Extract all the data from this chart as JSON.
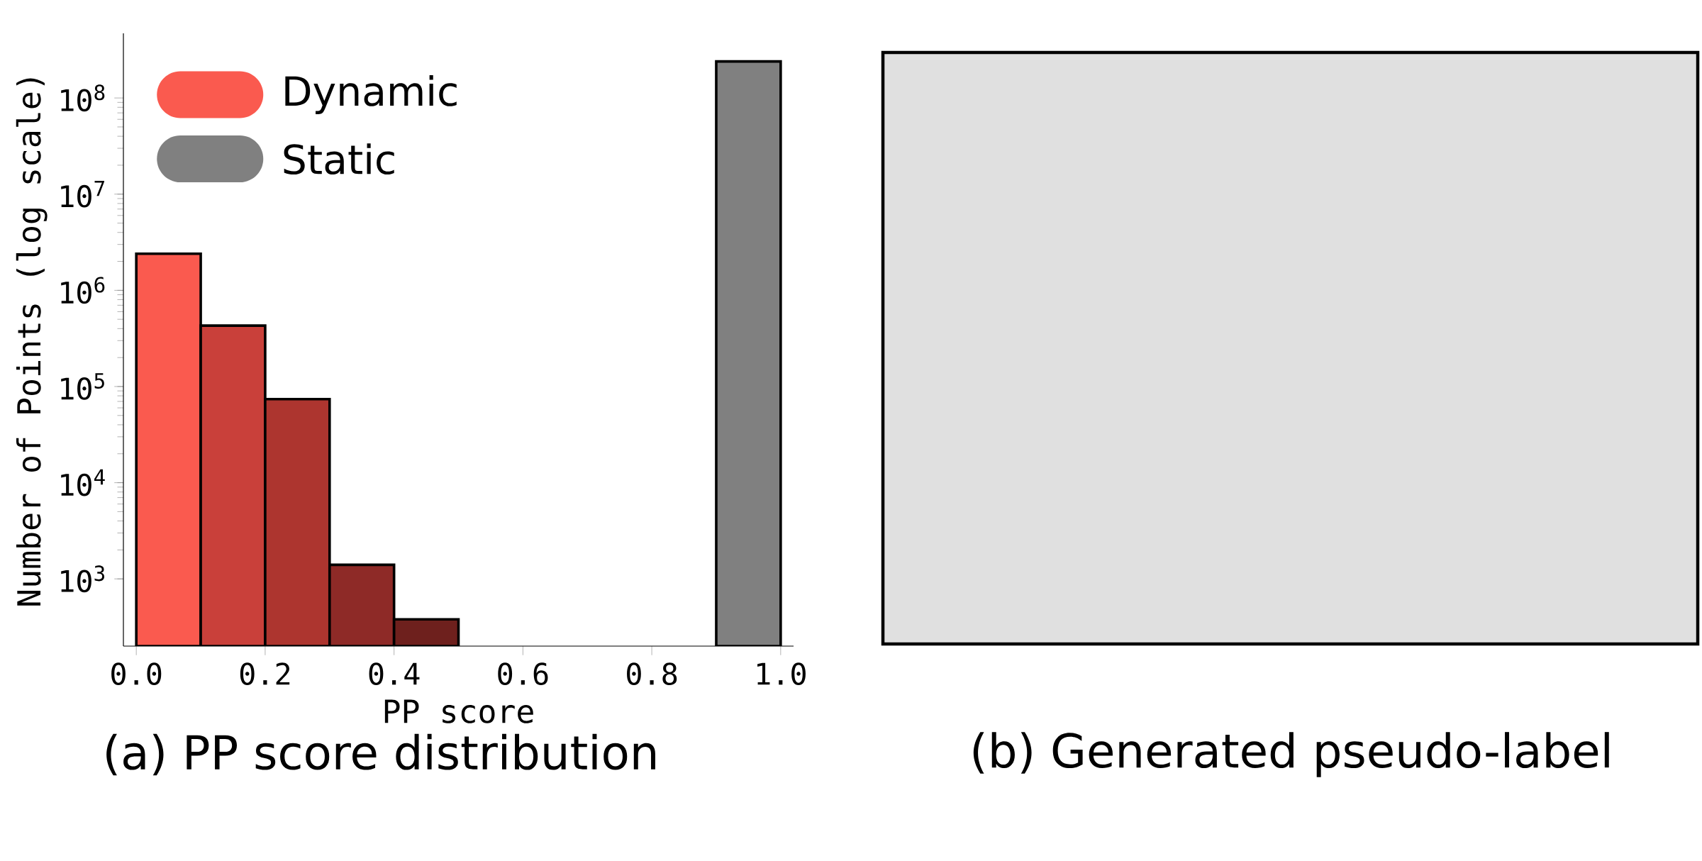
{
  "chart_data": {
    "type": "histogram",
    "title": "(a) PP score distribution",
    "xlabel": "PP score",
    "ylabel": "Number of Points (log scale)",
    "bins": [
      0.0,
      0.1,
      0.2,
      0.3,
      0.4,
      0.5,
      0.6,
      0.7,
      0.8,
      0.9,
      1.0
    ],
    "series": [
      {
        "name": "Dynamic",
        "color": "#fa5a4f",
        "colors": [
          "#fa5a4f",
          "#c9403a",
          "#ad352f",
          "#8e2a27",
          "#6e201d",
          null,
          null,
          null,
          null,
          null
        ],
        "values": [
          2400000,
          430000,
          74000,
          1400,
          380,
          null,
          null,
          null,
          null,
          null
        ]
      },
      {
        "name": "Static",
        "color": "#808080",
        "colors": [
          null,
          null,
          null,
          null,
          null,
          null,
          null,
          null,
          null,
          "#808080"
        ],
        "values": [
          null,
          null,
          null,
          null,
          null,
          null,
          null,
          null,
          null,
          240000000
        ]
      }
    ],
    "log": "y",
    "legend": "top left",
    "grid": false,
    "xlim": [
      -0.02,
      1.02
    ],
    "ylim": [
      200,
      470000000
    ],
    "xticks": [
      {
        "value": 0.0,
        "label": "0.0"
      },
      {
        "value": 0.2,
        "label": "0.2"
      },
      {
        "value": 0.4,
        "label": "0.4"
      },
      {
        "value": 0.6,
        "label": "0.6"
      },
      {
        "value": 0.8,
        "label": "0.8"
      },
      {
        "value": 1.0,
        "label": "1.0"
      }
    ],
    "yticks": [
      {
        "value": 1000,
        "label": "10$^{3}$"
      },
      {
        "value": 10000,
        "label": "10$^{4}$"
      },
      {
        "value": 100000,
        "label": "10$^{5}$"
      },
      {
        "value": 1000000,
        "label": "10$^{6}$"
      },
      {
        "value": 10000000,
        "label": "10$^{7}$"
      },
      {
        "value": 100000000,
        "label": "10$^{8}$"
      }
    ],
    "annotations": [
      "(b) Generated pseudo-label"
    ]
  }
}
